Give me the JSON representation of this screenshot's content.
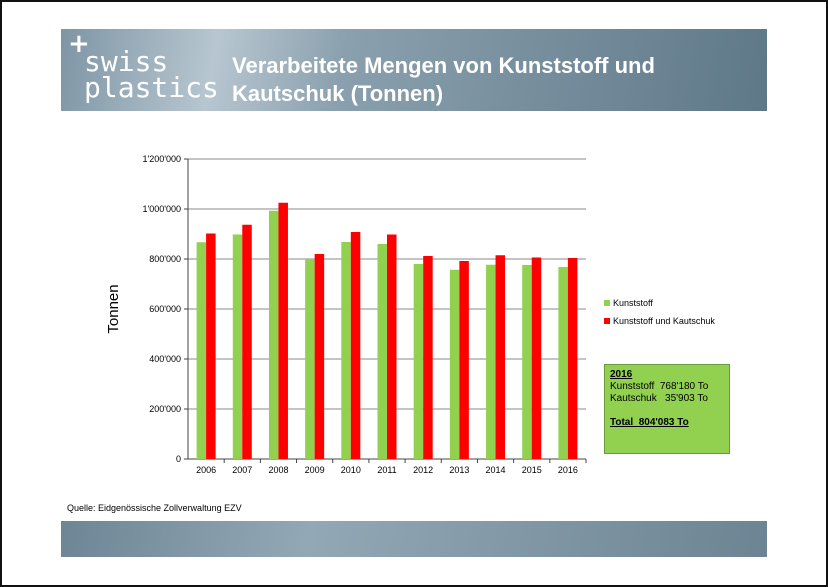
{
  "header": {
    "logo_plus": "+",
    "logo_line1": "swiss",
    "logo_line2": "plastics",
    "title": "Verarbeitete Mengen von Kunststoff und Kautschuk (Tonnen)"
  },
  "source": "Quelle: Eidgenössische Zollverwaltung EZV",
  "infobox": {
    "year": "2016",
    "line1": "Kunststoff  768'180 To",
    "line2": "Kautschuk   35'903 To",
    "total": "Total  804'083 To"
  },
  "colors": {
    "kunststoff": "#92d050",
    "kautschuk": "#ff0000",
    "header": "#6c8493"
  },
  "chart_data": {
    "type": "bar",
    "ylabel": "Tonnen",
    "ylim": [
      0,
      1200000
    ],
    "yticks": [
      0,
      200000,
      400000,
      600000,
      800000,
      1000000,
      1200000
    ],
    "ytick_labels": [
      "0",
      "200'000",
      "400'000",
      "600'000",
      "800'000",
      "1'000'000",
      "1'200'000"
    ],
    "categories": [
      "2006",
      "2007",
      "2008",
      "2009",
      "2010",
      "2011",
      "2012",
      "2013",
      "2014",
      "2015",
      "2016"
    ],
    "grid": true,
    "legend": "right",
    "series": [
      {
        "name": "Kunststoff",
        "values": [
          867000,
          898000,
          993000,
          797000,
          868000,
          860000,
          780000,
          757000,
          777000,
          776000,
          768180
        ]
      },
      {
        "name": "Kunststoff und Kautschuk",
        "values": [
          902000,
          937000,
          1025000,
          820000,
          908000,
          898000,
          812000,
          792000,
          815000,
          806000,
          804083
        ]
      }
    ]
  }
}
